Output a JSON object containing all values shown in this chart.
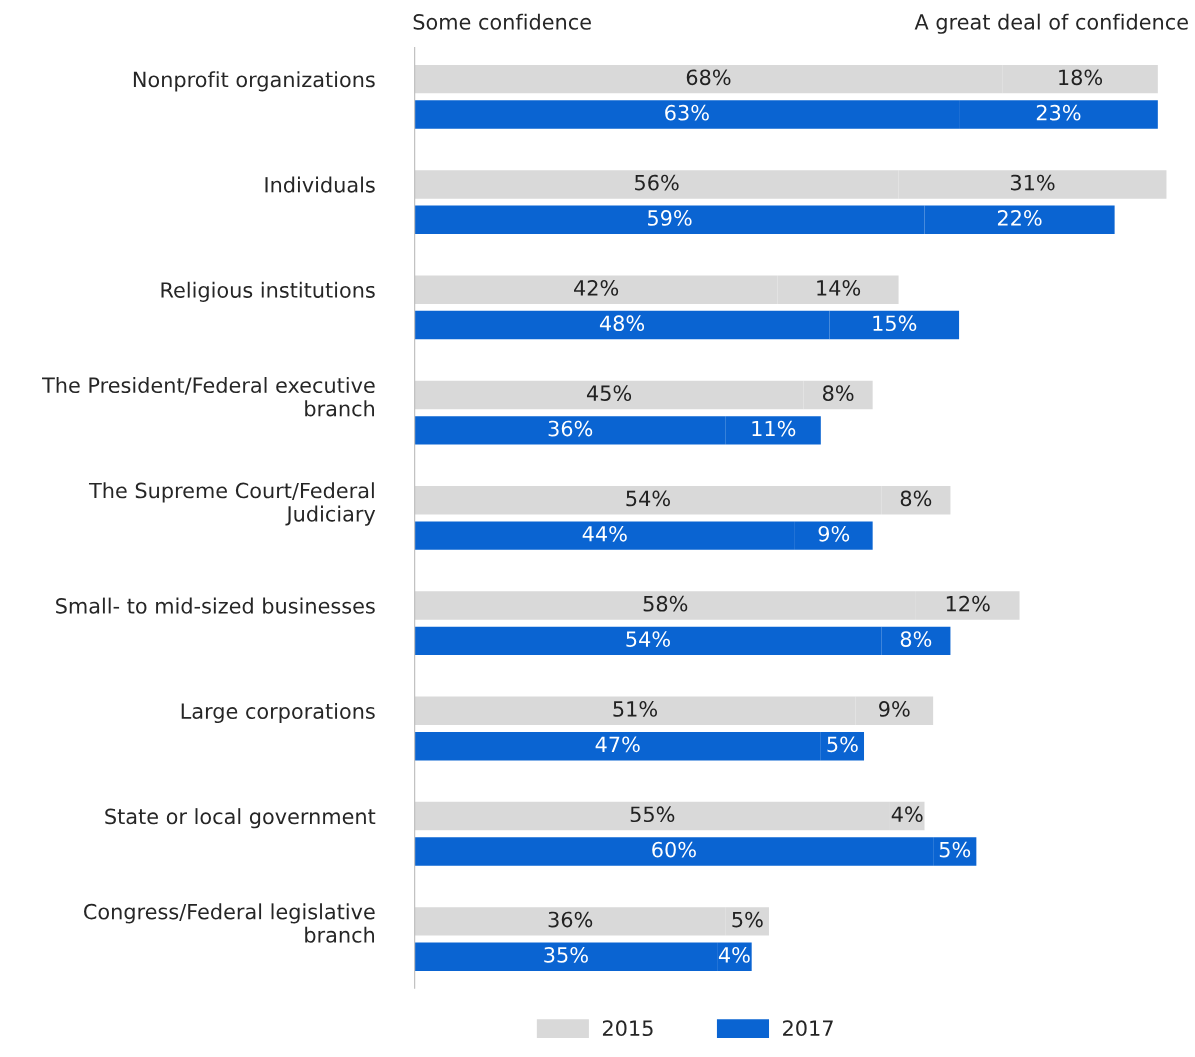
{
  "chart_data": {
    "type": "bar",
    "orientation": "horizontal",
    "stacked": true,
    "categories": [
      "Nonprofit organizations",
      null,
      "Individuals",
      null,
      "Religious institutions",
      null,
      "The President/Federal executive\nbranch",
      null,
      "The Supreme Court/Federal\nJudiciary",
      null,
      "Small- to mid-sized businesses",
      null,
      "Large corporations",
      null,
      "State or local government",
      null,
      "Congress/Federal legislative\nbranch",
      null
    ],
    "series": [
      {
        "name": "2015",
        "color": "#d9d9d9",
        "values": [
          68,
          null,
          56,
          null,
          42,
          null,
          45,
          null,
          54,
          null,
          58,
          null,
          51,
          null,
          55,
          null,
          36,
          null
        ],
        "value_labels": [
          "68%",
          null,
          "56%",
          null,
          "42%",
          null,
          "45%",
          null,
          "54%",
          null,
          "58%",
          null,
          "51%",
          null,
          "55%",
          null,
          "36%",
          null
        ]
      },
      {
        "color": "#d9d9d9",
        "values": [
          18,
          null,
          31,
          null,
          14,
          null,
          8,
          null,
          8,
          null,
          12,
          null,
          9,
          null,
          4,
          null,
          5,
          null
        ],
        "value_labels": [
          "18%",
          null,
          "31%",
          null,
          "14%",
          null,
          "8%",
          null,
          "8%",
          null,
          "12%",
          null,
          "9%",
          null,
          "4%",
          null,
          "5%",
          null
        ]
      },
      {
        "name": "2017",
        "color": "#0a64d2",
        "values": [
          null,
          63,
          null,
          59,
          null,
          48,
          null,
          36,
          null,
          44,
          null,
          54,
          null,
          47,
          null,
          60,
          null,
          35
        ],
        "value_labels": [
          null,
          "63%",
          null,
          "59%",
          null,
          "48%",
          null,
          "36%",
          null,
          "44%",
          null,
          "54%",
          null,
          "47%",
          null,
          "60%",
          null,
          "35%"
        ]
      },
      {
        "color": "#0a64d2",
        "values": [
          null,
          23,
          null,
          22,
          null,
          15,
          null,
          11,
          null,
          9,
          null,
          8,
          null,
          5,
          null,
          5,
          null,
          4
        ],
        "value_labels": [
          null,
          "23%",
          null,
          "22%",
          null,
          "15%",
          null,
          "11%",
          null,
          "9%",
          null,
          "8%",
          null,
          "5%",
          null,
          "5%",
          null,
          "4%"
        ]
      }
    ],
    "annotations": [
      "Some confidence",
      "A great deal of confidence"
    ],
    "tick_labels": "y",
    "grid": false,
    "legend": "bottom"
  }
}
